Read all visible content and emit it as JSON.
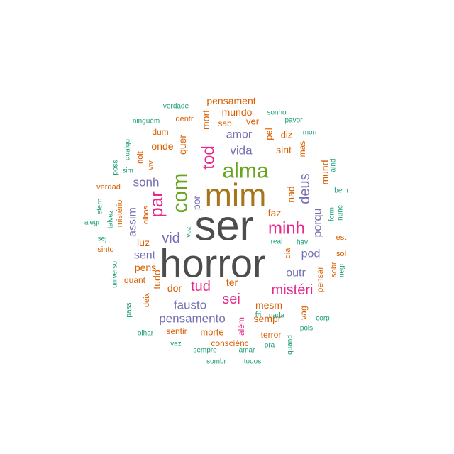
{
  "chart_data": {
    "type": "wordcloud",
    "palette": {
      "c1": "#4d4d4d",
      "c2": "#a6761d",
      "c3": "#66a61e",
      "c4": "#e7298a",
      "c5": "#7570b3",
      "c6": "#d95f02",
      "c7": "#1b9e77"
    },
    "words": [
      {
        "word": "ser",
        "freq": 60,
        "color": "c1",
        "rotated": false
      },
      {
        "word": "horror",
        "freq": 56,
        "color": "c1",
        "rotated": false
      },
      {
        "word": "mim",
        "freq": 46,
        "color": "c2",
        "rotated": false
      },
      {
        "word": "alma",
        "freq": 30,
        "color": "c3",
        "rotated": false
      },
      {
        "word": "com",
        "freq": 30,
        "color": "c3",
        "rotated": true
      },
      {
        "word": "par",
        "freq": 26,
        "color": "c4",
        "rotated": true
      },
      {
        "word": "tod",
        "freq": 24,
        "color": "c4",
        "rotated": true
      },
      {
        "word": "minh",
        "freq": 24,
        "color": "c4",
        "rotated": false
      },
      {
        "word": "deus",
        "freq": 20,
        "color": "c5",
        "rotated": true
      },
      {
        "word": "mistéri",
        "freq": 20,
        "color": "c4",
        "rotated": false
      },
      {
        "word": "tud",
        "freq": 20,
        "color": "c4",
        "rotated": false
      },
      {
        "word": "sei",
        "freq": 20,
        "color": "c4",
        "rotated": false
      },
      {
        "word": "vid",
        "freq": 20,
        "color": "c5",
        "rotated": false
      },
      {
        "word": "vida",
        "freq": 17,
        "color": "c5",
        "rotated": false
      },
      {
        "word": "fausto",
        "freq": 17,
        "color": "c5",
        "rotated": false
      },
      {
        "word": "pensamento",
        "freq": 17,
        "color": "c5",
        "rotated": false
      },
      {
        "word": "sonh",
        "freq": 17,
        "color": "c5",
        "rotated": false
      },
      {
        "word": "amor",
        "freq": 16,
        "color": "c5",
        "rotated": false
      },
      {
        "word": "porqu",
        "freq": 16,
        "color": "c5",
        "rotated": true
      },
      {
        "word": "pod",
        "freq": 16,
        "color": "c5",
        "rotated": false
      },
      {
        "word": "outr",
        "freq": 16,
        "color": "c5",
        "rotated": false
      },
      {
        "word": "sent",
        "freq": 16,
        "color": "c5",
        "rotated": false
      },
      {
        "word": "assim",
        "freq": 16,
        "color": "c5",
        "rotated": true
      },
      {
        "word": "mund",
        "freq": 14,
        "color": "c6",
        "rotated": true
      },
      {
        "word": "quer",
        "freq": 14,
        "color": "c6",
        "rotated": true
      },
      {
        "word": "onde",
        "freq": 14,
        "color": "c6",
        "rotated": false
      },
      {
        "word": "mesm",
        "freq": 14,
        "color": "c6",
        "rotated": false
      },
      {
        "word": "sempr",
        "freq": 14,
        "color": "c6",
        "rotated": false
      },
      {
        "word": "mort",
        "freq": 14,
        "color": "c6",
        "rotated": true
      },
      {
        "word": "mundo",
        "freq": 14,
        "color": "c6",
        "rotated": false
      },
      {
        "word": "pensament",
        "freq": 14,
        "color": "c6",
        "rotated": false
      },
      {
        "word": "sint",
        "freq": 14,
        "color": "c6",
        "rotated": false
      },
      {
        "word": "faz",
        "freq": 14,
        "color": "c6",
        "rotated": false
      },
      {
        "word": "nad",
        "freq": 14,
        "color": "c6",
        "rotated": true
      },
      {
        "word": "por",
        "freq": 14,
        "color": "c5",
        "rotated": true
      },
      {
        "word": "ter",
        "freq": 14,
        "color": "c6",
        "rotated": false
      },
      {
        "word": "tudo",
        "freq": 14,
        "color": "c6",
        "rotated": true
      },
      {
        "word": "dor",
        "freq": 14,
        "color": "c6",
        "rotated": false
      },
      {
        "word": "luz",
        "freq": 14,
        "color": "c6",
        "rotated": false
      },
      {
        "word": "pens",
        "freq": 14,
        "color": "c6",
        "rotated": false
      },
      {
        "word": "morte",
        "freq": 13,
        "color": "c6",
        "rotated": false
      },
      {
        "word": "ver",
        "freq": 13,
        "color": "c6",
        "rotated": false
      },
      {
        "word": "pel",
        "freq": 13,
        "color": "c6",
        "rotated": true
      },
      {
        "word": "diz",
        "freq": 13,
        "color": "c6",
        "rotated": false
      },
      {
        "word": "mas",
        "freq": 12,
        "color": "c6",
        "rotated": true
      },
      {
        "word": "além",
        "freq": 12,
        "color": "c4",
        "rotated": true
      },
      {
        "word": "pensar",
        "freq": 12,
        "color": "c6",
        "rotated": true
      },
      {
        "word": "sentir",
        "freq": 12,
        "color": "c6",
        "rotated": false
      },
      {
        "word": "consciênc",
        "freq": 12,
        "color": "c6",
        "rotated": false
      },
      {
        "word": "terror",
        "freq": 12,
        "color": "c6",
        "rotated": false
      },
      {
        "word": "quant",
        "freq": 12,
        "color": "c6",
        "rotated": false
      },
      {
        "word": "deix",
        "freq": 11,
        "color": "c6",
        "rotated": true
      },
      {
        "word": "vag",
        "freq": 12,
        "color": "c6",
        "rotated": true
      },
      {
        "word": "sab",
        "freq": 12,
        "color": "c6",
        "rotated": false
      },
      {
        "word": "dum",
        "freq": 12,
        "color": "c6",
        "rotated": false
      },
      {
        "word": "dentr",
        "freq": 11,
        "color": "c6",
        "rotated": false
      },
      {
        "word": "noit",
        "freq": 11,
        "color": "c6",
        "rotated": true
      },
      {
        "word": "viv",
        "freq": 11,
        "color": "c6",
        "rotated": true
      },
      {
        "word": "olhos",
        "freq": 11,
        "color": "c6",
        "rotated": true
      },
      {
        "word": "mistério",
        "freq": 11,
        "color": "c6",
        "rotated": true
      },
      {
        "word": "verdad",
        "freq": 11,
        "color": "c6",
        "rotated": false
      },
      {
        "word": "dia",
        "freq": 11,
        "color": "c6",
        "rotated": true
      },
      {
        "word": "sobr",
        "freq": 11,
        "color": "c6",
        "rotated": true
      },
      {
        "word": "sol",
        "freq": 11,
        "color": "c6",
        "rotated": false
      },
      {
        "word": "est",
        "freq": 11,
        "color": "c6",
        "rotated": false
      },
      {
        "word": "sinto",
        "freq": 11,
        "color": "c6",
        "rotated": false
      },
      {
        "word": "verdade",
        "freq": 10,
        "color": "c7",
        "rotated": false
      },
      {
        "word": "ninguém",
        "freq": 10,
        "color": "c7",
        "rotated": false
      },
      {
        "word": "sonho",
        "freq": 10,
        "color": "c7",
        "rotated": false
      },
      {
        "word": "pavor",
        "freq": 10,
        "color": "c7",
        "rotated": false
      },
      {
        "word": "morr",
        "freq": 10,
        "color": "c7",
        "rotated": false
      },
      {
        "word": "aind",
        "freq": 10,
        "color": "c7",
        "rotated": true
      },
      {
        "word": "bem",
        "freq": 10,
        "color": "c7",
        "rotated": false
      },
      {
        "word": "nunc",
        "freq": 10,
        "color": "c7",
        "rotated": true
      },
      {
        "word": "form",
        "freq": 10,
        "color": "c7",
        "rotated": true
      },
      {
        "word": "negr",
        "freq": 10,
        "color": "c7",
        "rotated": true
      },
      {
        "word": "corp",
        "freq": 10,
        "color": "c7",
        "rotated": false
      },
      {
        "word": "pois",
        "freq": 10,
        "color": "c7",
        "rotated": false
      },
      {
        "word": "quand",
        "freq": 10,
        "color": "c7",
        "rotated": true
      },
      {
        "word": "todos",
        "freq": 10,
        "color": "c7",
        "rotated": false
      },
      {
        "word": "pra",
        "freq": 10,
        "color": "c7",
        "rotated": false
      },
      {
        "word": "amar",
        "freq": 10,
        "color": "c7",
        "rotated": false
      },
      {
        "word": "sombr",
        "freq": 10,
        "color": "c7",
        "rotated": false
      },
      {
        "word": "sempre",
        "freq": 10,
        "color": "c7",
        "rotated": false
      },
      {
        "word": "vez",
        "freq": 10,
        "color": "c7",
        "rotated": false
      },
      {
        "word": "olhar",
        "freq": 10,
        "color": "c7",
        "rotated": false
      },
      {
        "word": "pass",
        "freq": 10,
        "color": "c7",
        "rotated": true
      },
      {
        "word": "universo",
        "freq": 10,
        "color": "c7",
        "rotated": true
      },
      {
        "word": "sej",
        "freq": 10,
        "color": "c7",
        "rotated": false
      },
      {
        "word": "alegr",
        "freq": 10,
        "color": "c7",
        "rotated": false
      },
      {
        "word": "etern",
        "freq": 10,
        "color": "c7",
        "rotated": true
      },
      {
        "word": "talvez",
        "freq": 10,
        "color": "c7",
        "rotated": true
      },
      {
        "word": "poss",
        "freq": 10,
        "color": "c7",
        "rotated": true
      },
      {
        "word": "qualqu",
        "freq": 10,
        "color": "c7",
        "rotated": true
      },
      {
        "word": "sim",
        "freq": 10,
        "color": "c7",
        "rotated": false
      },
      {
        "word": "voz",
        "freq": 10,
        "color": "c7",
        "rotated": true
      },
      {
        "word": "real",
        "freq": 10,
        "color": "c7",
        "rotated": false
      },
      {
        "word": "hav",
        "freq": 10,
        "color": "c7",
        "rotated": false
      },
      {
        "word": "fri",
        "freq": 10,
        "color": "c7",
        "rotated": false
      },
      {
        "word": "nada",
        "freq": 10,
        "color": "c7",
        "rotated": false
      }
    ]
  }
}
